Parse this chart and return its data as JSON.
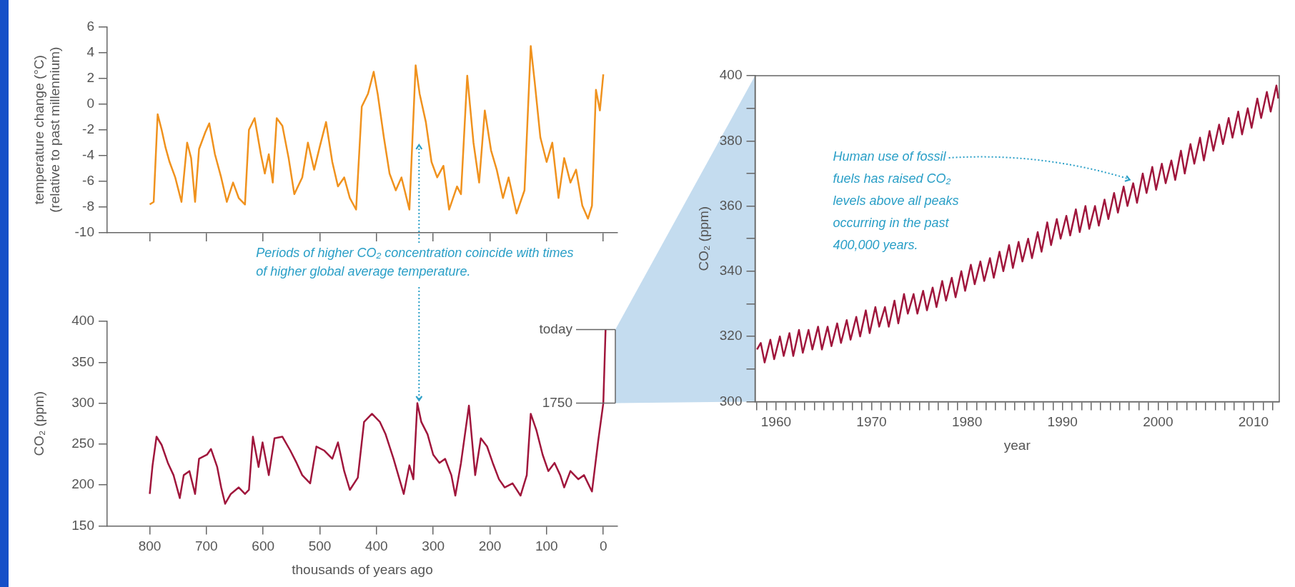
{
  "chart_data": [
    {
      "type": "line",
      "ylabel": "temperature change (°C)\n(relative to past millennium)",
      "xlim": [
        875,
        -25
      ],
      "xticks": [
        800,
        700,
        600,
        500,
        400,
        300,
        200,
        100,
        0
      ],
      "ylim": [
        -10,
        6
      ],
      "yticks": [
        -10,
        -8,
        -6,
        -4,
        -2,
        0,
        2,
        4,
        6
      ],
      "tick_labels": "y",
      "series": [
        {
          "color": "#f0921e",
          "x": [
            800,
            793,
            786,
            779,
            772,
            765,
            755,
            744,
            734,
            727,
            720,
            713,
            702,
            695,
            685,
            674,
            664,
            653,
            643,
            632,
            625,
            615,
            604,
            597,
            590,
            583,
            576,
            566,
            555,
            545,
            531,
            521,
            510,
            500,
            489,
            478,
            468,
            457,
            447,
            436,
            426,
            415,
            405,
            398,
            387,
            377,
            366,
            356,
            342,
            331,
            324,
            313,
            303,
            293,
            282,
            272,
            258,
            251,
            240,
            229,
            219,
            209,
            198,
            188,
            177,
            167,
            153,
            139,
            128,
            121,
            111,
            100,
            90,
            79,
            69,
            58,
            48,
            37,
            27,
            20,
            13,
            6,
            0
          ],
          "values": [
            -7.8,
            -7.6,
            -0.8,
            -2,
            -3.4,
            -4.5,
            -5.7,
            -7.6,
            -3,
            -4.2,
            -7.6,
            -3.5,
            -2.2,
            -1.5,
            -3.9,
            -5.7,
            -7.6,
            -6.1,
            -7.3,
            -7.8,
            -2,
            -1.1,
            -3.9,
            -5.4,
            -3.9,
            -6.1,
            -1.1,
            -1.7,
            -4.2,
            -7,
            -5.7,
            -3,
            -5.1,
            -3.3,
            -1.4,
            -4.5,
            -6.4,
            -5.7,
            -7.3,
            -8.2,
            -0.2,
            0.8,
            2.5,
            0.8,
            -2.6,
            -5.4,
            -6.7,
            -5.7,
            -8.2,
            3,
            0.8,
            -1.4,
            -4.5,
            -5.7,
            -4.8,
            -8.2,
            -6.4,
            -7,
            2.2,
            -3,
            -6.1,
            -0.5,
            -3.6,
            -5.1,
            -7.3,
            -5.7,
            -8.5,
            -6.7,
            4.5,
            1.7,
            -2.6,
            -4.5,
            -3,
            -7.3,
            -4.2,
            -6.1,
            -5.1,
            -7.9,
            -8.9,
            -7.9,
            1.1,
            -0.5,
            2.3
          ]
        }
      ]
    },
    {
      "type": "line",
      "ylabel": "CO₂ (ppm)",
      "xlabel": "thousands of years ago",
      "xlim": [
        875,
        -25
      ],
      "xticks": [
        800,
        700,
        600,
        500,
        400,
        300,
        200,
        100,
        0
      ],
      "ylim": [
        150,
        400
      ],
      "yticks": [
        150,
        200,
        250,
        300,
        350,
        400
      ],
      "annotations": [
        {
          "text": "Periods of higher CO₂ concentration coincide with times of higher global average temperature.",
          "x": 325,
          "y": 300
        },
        {
          "text": "today",
          "x": -4,
          "y": 390
        },
        {
          "text": "1750",
          "x": 0,
          "y": 300
        }
      ],
      "series": [
        {
          "color": "#a0163c",
          "x": [
            800,
            795,
            788,
            779,
            768,
            758,
            747,
            740,
            730,
            720,
            713,
            699,
            692,
            681,
            674,
            667,
            657,
            643,
            632,
            625,
            618,
            608,
            601,
            590,
            580,
            566,
            552,
            541,
            531,
            517,
            506,
            492,
            478,
            468,
            457,
            447,
            433,
            422,
            408,
            394,
            384,
            370,
            352,
            342,
            335,
            328,
            321,
            310,
            300,
            289,
            279,
            268,
            261,
            251,
            237,
            226,
            216,
            205,
            195,
            184,
            174,
            160,
            146,
            135,
            128,
            118,
            107,
            97,
            86,
            76,
            69,
            58,
            44,
            34,
            20,
            9,
            0,
            -4
          ],
          "values": [
            189,
            224,
            259,
            249,
            227,
            212,
            184,
            212,
            217,
            189,
            232,
            237,
            244,
            222,
            197,
            177,
            189,
            197,
            189,
            194,
            259,
            222,
            252,
            212,
            257,
            259,
            242,
            227,
            212,
            202,
            247,
            242,
            232,
            252,
            217,
            194,
            209,
            277,
            287,
            277,
            262,
            232,
            189,
            224,
            207,
            300,
            277,
            262,
            237,
            227,
            232,
            212,
            187,
            227,
            297,
            212,
            257,
            247,
            227,
            207,
            197,
            202,
            187,
            212,
            287,
            267,
            237,
            217,
            227,
            212,
            197,
            217,
            207,
            212,
            192,
            254,
            300,
            390
          ]
        }
      ]
    },
    {
      "type": "line",
      "ylabel": "CO₂ (ppm)",
      "xlabel": "year",
      "xlim": [
        1957.8,
        2012.7
      ],
      "xticks": [
        {
          "value": 1958,
          "label": null
        },
        {
          "value": 1959,
          "label": null
        },
        1960,
        {
          "value": 1961,
          "label": null
        },
        {
          "value": 1962,
          "label": null
        },
        {
          "value": 1963,
          "label": null
        },
        {
          "value": 1964,
          "label": null
        },
        {
          "value": 1965,
          "label": null
        },
        {
          "value": 1966,
          "label": null
        },
        {
          "value": 1967,
          "label": null
        },
        {
          "value": 1968,
          "label": null
        },
        {
          "value": 1969,
          "label": null
        },
        1970,
        {
          "value": 1971,
          "label": null
        },
        {
          "value": 1972,
          "label": null
        },
        {
          "value": 1973,
          "label": null
        },
        {
          "value": 1974,
          "label": null
        },
        {
          "value": 1975,
          "label": null
        },
        {
          "value": 1976,
          "label": null
        },
        {
          "value": 1977,
          "label": null
        },
        {
          "value": 1978,
          "label": null
        },
        {
          "value": 1979,
          "label": null
        },
        1980,
        {
          "value": 1981,
          "label": null
        },
        {
          "value": 1982,
          "label": null
        },
        {
          "value": 1983,
          "label": null
        },
        {
          "value": 1984,
          "label": null
        },
        {
          "value": 1985,
          "label": null
        },
        {
          "value": 1986,
          "label": null
        },
        {
          "value": 1987,
          "label": null
        },
        {
          "value": 1988,
          "label": null
        },
        {
          "value": 1989,
          "label": null
        },
        1990,
        {
          "value": 1991,
          "label": null
        },
        {
          "value": 1992,
          "label": null
        },
        {
          "value": 1993,
          "label": null
        },
        {
          "value": 1994,
          "label": null
        },
        {
          "value": 1995,
          "label": null
        },
        {
          "value": 1996,
          "label": null
        },
        {
          "value": 1997,
          "label": null
        },
        {
          "value": 1998,
          "label": null
        },
        {
          "value": 1999,
          "label": null
        },
        2000,
        {
          "value": 2001,
          "label": null
        },
        {
          "value": 2002,
          "label": null
        },
        {
          "value": 2003,
          "label": null
        },
        {
          "value": 2004,
          "label": null
        },
        {
          "value": 2005,
          "label": null
        },
        {
          "value": 2006,
          "label": null
        },
        {
          "value": 2007,
          "label": null
        },
        {
          "value": 2008,
          "label": null
        },
        {
          "value": 2009,
          "label": null
        },
        2010,
        {
          "value": 2011,
          "label": null
        },
        {
          "value": 2012,
          "label": null
        }
      ],
      "ylim": [
        300,
        400
      ],
      "yticks": [
        300,
        {
          "value": 310,
          "label": null
        },
        320,
        {
          "value": 330,
          "label": null
        },
        340,
        {
          "value": 350,
          "label": null
        },
        360,
        {
          "value": 370,
          "label": null
        },
        380,
        {
          "value": 390,
          "label": null
        },
        400
      ],
      "annotations": [
        {
          "text": "Human use of fossil fuels has raised CO₂ levels above all peaks occurring in the past 400,000 years.",
          "x": 1997.4,
          "y": 367
        }
      ],
      "series": [
        {
          "color": "#a0163c",
          "x": [
            1958.0,
            1958.4,
            1958.8,
            1959.4,
            1959.8,
            1960.4,
            1960.8,
            1961.4,
            1961.8,
            1962.4,
            1962.8,
            1963.4,
            1963.8,
            1964.4,
            1964.8,
            1965.4,
            1965.8,
            1966.4,
            1966.8,
            1967.4,
            1967.8,
            1968.4,
            1968.8,
            1969.4,
            1969.8,
            1970.4,
            1970.8,
            1971.4,
            1971.8,
            1972.4,
            1972.8,
            1973.4,
            1973.8,
            1974.4,
            1974.8,
            1975.4,
            1975.8,
            1976.4,
            1976.8,
            1977.4,
            1977.8,
            1978.4,
            1978.8,
            1979.4,
            1979.8,
            1980.4,
            1980.8,
            1981.4,
            1981.8,
            1982.4,
            1982.8,
            1983.4,
            1983.8,
            1984.4,
            1984.8,
            1985.4,
            1985.8,
            1986.4,
            1986.8,
            1987.4,
            1987.8,
            1988.4,
            1988.8,
            1989.4,
            1989.8,
            1990.4,
            1990.8,
            1991.4,
            1991.8,
            1992.4,
            1992.8,
            1993.4,
            1993.8,
            1994.4,
            1994.8,
            1995.4,
            1995.8,
            1996.4,
            1996.8,
            1997.4,
            1997.8,
            1998.4,
            1998.8,
            1999.4,
            1999.8,
            2000.4,
            2000.8,
            2001.4,
            2001.8,
            2002.4,
            2002.8,
            2003.4,
            2003.8,
            2004.4,
            2004.8,
            2005.4,
            2005.8,
            2006.4,
            2006.8,
            2007.4,
            2007.8,
            2008.4,
            2008.8,
            2009.4,
            2009.8,
            2010.4,
            2010.8,
            2011.4,
            2011.8,
            2012.4,
            2012.6
          ],
          "values": [
            316,
            318,
            312,
            319,
            313,
            320,
            314,
            321,
            314,
            322,
            315,
            322,
            316,
            323,
            316,
            323,
            317,
            324,
            318,
            325,
            319,
            326,
            320,
            328,
            321,
            329,
            323,
            329,
            323,
            331,
            324,
            333,
            327,
            333,
            327,
            334,
            328,
            335,
            329,
            337,
            331,
            338,
            332,
            340,
            334,
            342,
            336,
            343,
            337,
            344,
            338,
            346,
            340,
            348,
            341,
            349,
            343,
            350,
            344,
            352,
            346,
            355,
            348,
            356,
            350,
            357,
            351,
            359,
            352,
            360,
            353,
            360,
            354,
            362,
            356,
            364,
            358,
            366,
            360,
            367,
            361,
            370,
            364,
            372,
            365,
            373,
            367,
            374,
            368,
            377,
            370,
            379,
            373,
            381,
            374,
            383,
            377,
            385,
            379,
            387,
            381,
            389,
            382,
            390,
            384,
            393,
            387,
            395,
            389,
            397,
            393
          ]
        }
      ]
    }
  ]
}
